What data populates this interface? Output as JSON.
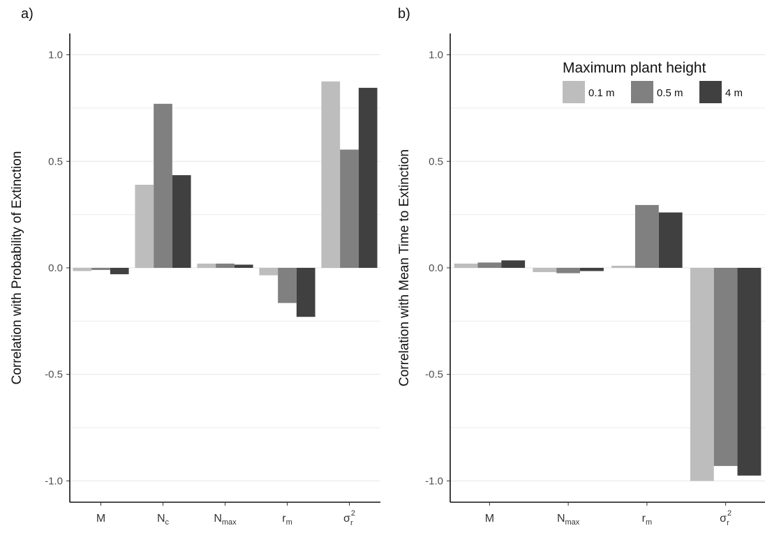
{
  "chart_data": [
    {
      "panel_tag": "a)",
      "type": "bar",
      "ylabel": "Correlation with Probability of Extinction",
      "ylim": [
        -1.1,
        1.1
      ],
      "y_ticks": [
        "1.0",
        "0.5",
        "0.0",
        "-0.5",
        "-1.0"
      ],
      "y_tick_values": [
        1.0,
        0.5,
        0.0,
        -0.5,
        -1.0
      ],
      "grid": true,
      "categories": [
        {
          "main": "M",
          "sub": "",
          "sup": ""
        },
        {
          "main": "N",
          "sub": "c",
          "sup": ""
        },
        {
          "main": "N",
          "sub": "max",
          "sup": ""
        },
        {
          "main": "r",
          "sub": "m",
          "sup": ""
        },
        {
          "main": "σ",
          "sub": "r",
          "sup": "2"
        }
      ],
      "series": [
        {
          "name": "0.1 m",
          "color": "#bdbdbd",
          "values": [
            -0.015,
            0.39,
            0.02,
            -0.035,
            0.875
          ]
        },
        {
          "name": "0.5 m",
          "color": "#808080",
          "values": [
            -0.01,
            0.77,
            0.02,
            -0.165,
            0.555
          ]
        },
        {
          "name": "4 m",
          "color": "#404040",
          "values": [
            -0.03,
            0.435,
            0.015,
            -0.23,
            0.845
          ]
        }
      ]
    },
    {
      "panel_tag": "b)",
      "type": "bar",
      "ylabel": "Correlation with Mean Time to Extinction",
      "ylim": [
        -1.1,
        1.1
      ],
      "y_ticks": [
        "1.0",
        "0.5",
        "0.0",
        "-0.5",
        "-1.0"
      ],
      "y_tick_values": [
        1.0,
        0.5,
        0.0,
        -0.5,
        -1.0
      ],
      "grid": true,
      "categories": [
        {
          "main": "M",
          "sub": "",
          "sup": ""
        },
        {
          "main": "N",
          "sub": "max",
          "sup": ""
        },
        {
          "main": "r",
          "sub": "m",
          "sup": ""
        },
        {
          "main": "σ",
          "sub": "r",
          "sup": "2"
        }
      ],
      "series": [
        {
          "name": "0.1 m",
          "color": "#bdbdbd",
          "values": [
            0.02,
            -0.02,
            0.01,
            -1.0
          ]
        },
        {
          "name": "0.5 m",
          "color": "#808080",
          "values": [
            0.025,
            -0.025,
            0.295,
            -0.93
          ]
        },
        {
          "name": "4 m",
          "color": "#404040",
          "values": [
            0.035,
            -0.015,
            0.26,
            -0.975
          ]
        }
      ]
    }
  ],
  "legend": {
    "title": "Maximum plant height",
    "placement": "top-right",
    "items": [
      {
        "label": "0.1 m",
        "color": "#bdbdbd"
      },
      {
        "label": "0.5 m",
        "color": "#808080"
      },
      {
        "label": "4 m",
        "color": "#404040"
      }
    ]
  }
}
